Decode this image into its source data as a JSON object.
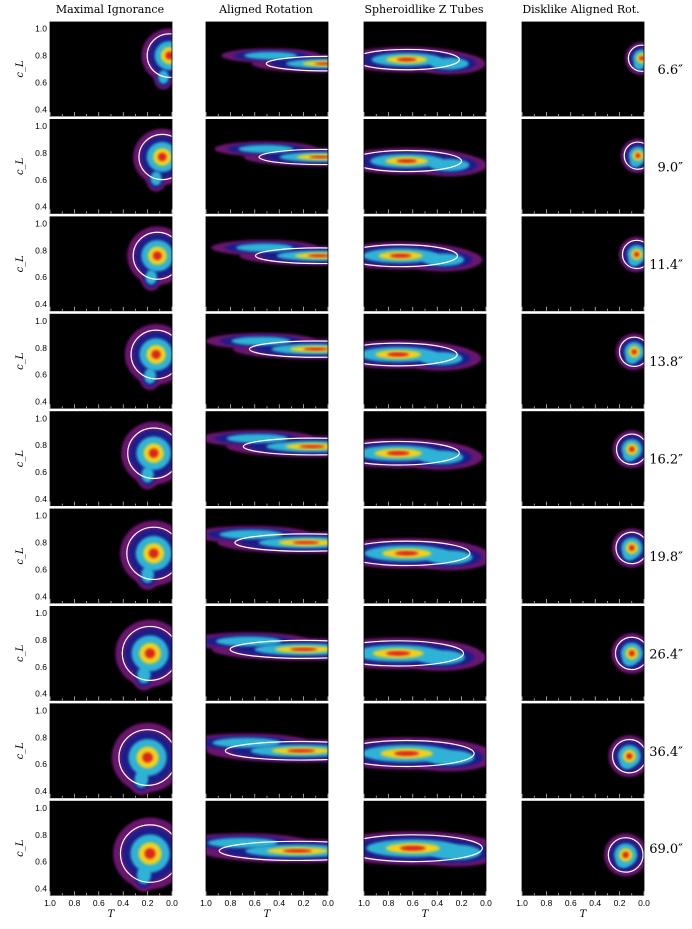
{
  "chart_data": {
    "type": "heatmap",
    "columns": [
      "Maximal Ignorance",
      "Aligned Rotation",
      "Spheroidlike Z Tubes",
      "Disklike Aligned Rot."
    ],
    "rows": [
      "6.6″",
      "9.0″",
      "11.4″",
      "13.8″",
      "16.2″",
      "19.8″",
      "26.4″",
      "36.4″",
      "69.0″"
    ],
    "xlabel": "T",
    "ylabel": "c_L",
    "xlim": [
      1.0,
      0.0
    ],
    "ylim": [
      0.35,
      1.05
    ],
    "xticks": [
      "1.0",
      "0.8",
      "0.6",
      "0.4",
      "0.2",
      "0.0"
    ],
    "yticks": [
      "0.4",
      "0.6",
      "0.8",
      "1.0"
    ],
    "colors": {
      "background": "#000000",
      "outer": "#6a1570",
      "mid": "#1b1f8a",
      "inner": "#2fb3d6",
      "core": "#f0d21a",
      "peak": "#e0211f",
      "contour": "#ffffff"
    },
    "peaks": [
      [
        {
          "T": 0.02,
          "c": 0.8
        },
        {
          "T": 0.02,
          "c": 0.74
        },
        {
          "T": 0.65,
          "c": 0.77
        },
        {
          "T": 0.02,
          "c": 0.78
        }
      ],
      [
        {
          "T": 0.08,
          "c": 0.77
        },
        {
          "T": 0.06,
          "c": 0.77
        },
        {
          "T": 0.65,
          "c": 0.74
        },
        {
          "T": 0.05,
          "c": 0.78
        }
      ],
      [
        {
          "T": 0.12,
          "c": 0.76
        },
        {
          "T": 0.07,
          "c": 0.76
        },
        {
          "T": 0.7,
          "c": 0.76
        },
        {
          "T": 0.06,
          "c": 0.77
        }
      ],
      [
        {
          "T": 0.13,
          "c": 0.75
        },
        {
          "T": 0.1,
          "c": 0.79
        },
        {
          "T": 0.72,
          "c": 0.75
        },
        {
          "T": 0.08,
          "c": 0.77
        }
      ],
      [
        {
          "T": 0.15,
          "c": 0.74
        },
        {
          "T": 0.13,
          "c": 0.79
        },
        {
          "T": 0.72,
          "c": 0.74
        },
        {
          "T": 0.1,
          "c": 0.77
        }
      ],
      [
        {
          "T": 0.15,
          "c": 0.72
        },
        {
          "T": 0.18,
          "c": 0.8
        },
        {
          "T": 0.65,
          "c": 0.72
        },
        {
          "T": 0.1,
          "c": 0.76
        }
      ],
      [
        {
          "T": 0.18,
          "c": 0.7
        },
        {
          "T": 0.2,
          "c": 0.73
        },
        {
          "T": 0.72,
          "c": 0.7
        },
        {
          "T": 0.1,
          "c": 0.7
        }
      ],
      [
        {
          "T": 0.2,
          "c": 0.65
        },
        {
          "T": 0.22,
          "c": 0.7
        },
        {
          "T": 0.65,
          "c": 0.68
        },
        {
          "T": 0.12,
          "c": 0.66
        }
      ],
      [
        {
          "T": 0.18,
          "c": 0.66
        },
        {
          "T": 0.25,
          "c": 0.68
        },
        {
          "T": 0.6,
          "c": 0.7
        },
        {
          "T": 0.15,
          "c": 0.65
        }
      ]
    ]
  }
}
